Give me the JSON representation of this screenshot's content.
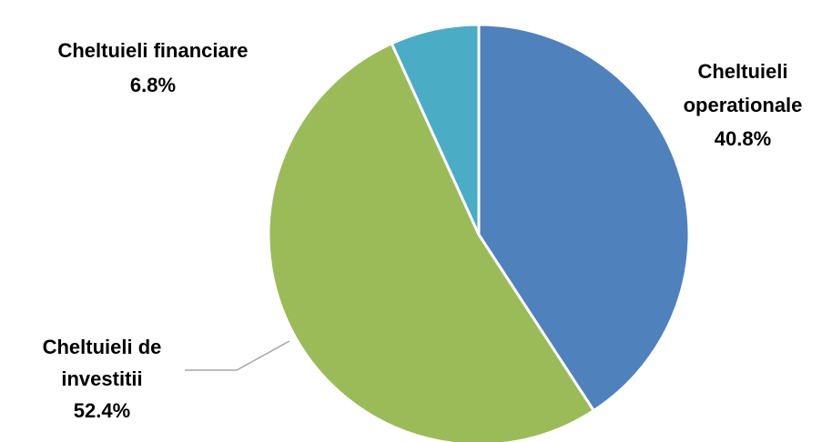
{
  "chart_data": {
    "type": "pie",
    "title": "",
    "slices": [
      {
        "category_lines": [
          "Cheltuieli",
          "operationale"
        ],
        "value": 40.8,
        "value_label": "40.8%",
        "color": "#4F81BD"
      },
      {
        "category_lines": [
          "Cheltuieli de",
          "investitii"
        ],
        "value": 52.4,
        "value_label": "52.4%",
        "color": "#9BBB59"
      },
      {
        "category_lines": [
          "Cheltuieli financiare"
        ],
        "value": 6.8,
        "value_label": "6.8%",
        "color": "#4BACC6"
      }
    ],
    "start_angle_deg": 0,
    "direction": "clockwise",
    "legend": "none",
    "label_style": "category-and-percent outside slices, bold"
  }
}
